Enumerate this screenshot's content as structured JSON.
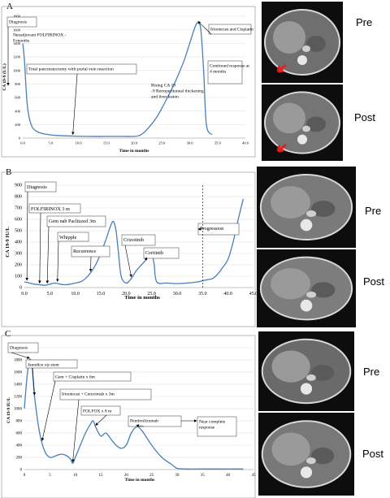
{
  "panels": [
    {
      "letter": "A",
      "ct_labels": [
        "Pre",
        "Post"
      ],
      "chart_data": {
        "type": "line",
        "xlabel": "Time in months",
        "ylabel": "CA 19-9 (U/L)",
        "xlim": [
          0,
          40
        ],
        "ylim": [
          0,
          1800
        ],
        "xticks": [
          "0.0",
          "5.0",
          "10.0",
          "15.0",
          "20.0",
          "25.0",
          "30.0",
          "35.0",
          "40.0"
        ],
        "yticks": [
          "0",
          "200",
          "400",
          "600",
          "800",
          "1000",
          "1200",
          "1400",
          "1600",
          "1800"
        ],
        "series": [
          {
            "x": [
              0.0,
              0.3,
              0.8,
              1.5,
              2.5,
              4.0,
              6.0,
              9.0,
              12.0,
              15.0,
              18.0,
              20.0,
              21.0,
              22.0,
              24.0,
              26.0,
              27.5,
              29.0,
              30.0,
              31.0,
              31.5,
              32.0,
              32.5,
              33.0,
              34.0
            ],
            "y": [
              1400,
              1150,
              500,
              200,
              100,
              60,
              40,
              30,
              25,
              25,
              25,
              25,
              40,
              100,
              300,
              600,
              850,
              1150,
              1400,
              1650,
              1700,
              1600,
              1000,
              200,
              50
            ]
          }
        ],
        "annotations": [
          {
            "text": "Diagnosis",
            "arrow_to": [
              0.3,
              1400
            ]
          },
          {
            "text": "Neoadjuvant FOLFIRINOX - 8 months"
          },
          {
            "text": "Total pancreatectomy with portal vein resection",
            "arrow_to": [
              9,
              30
            ]
          },
          {
            "text": "Irinotecan and Cisplatin",
            "arrow_to": [
              31.5,
              1700
            ]
          },
          {
            "text": "Rising CA 19 -9 Retroperitoneal thickening and liver lesion"
          },
          {
            "text": "Continued response at 4 months"
          }
        ]
      }
    },
    {
      "letter": "B",
      "ct_labels": [
        "Pre",
        "Post"
      ],
      "chart_data": {
        "type": "line",
        "xlabel": "Time in months",
        "ylabel": "CA 19-9 IU/L",
        "xlim": [
          0,
          45
        ],
        "ylim": [
          0,
          900
        ],
        "xticks": [
          "0.0",
          "5.0",
          "10.0",
          "15.0",
          "20.0",
          "25.0",
          "30.0",
          "35.0",
          "40.0",
          "45.0"
        ],
        "yticks": [
          "0",
          "100",
          "200",
          "300",
          "400",
          "500",
          "600",
          "700",
          "800",
          "900"
        ],
        "series": [
          {
            "x": [
              0.0,
              1.0,
              2.0,
              3.0,
              4.0,
              5.0,
              6.0,
              7.0,
              8.0,
              9.0,
              10.0,
              11.0,
              12.0,
              13.0,
              14.0,
              15.0,
              16.0,
              17.0,
              17.5,
              18.0,
              18.5,
              19.0,
              20.0,
              21.0,
              22.0,
              23.0,
              24.0,
              24.5,
              25.0,
              25.5,
              26.0,
              28.0,
              30.0,
              32.0,
              34.0,
              35.0,
              36.0,
              37.0,
              38.0,
              39.0,
              40.0,
              41.0,
              42.0,
              43.0
            ],
            "y": [
              50,
              40,
              30,
              25,
              20,
              30,
              40,
              30,
              25,
              30,
              40,
              50,
              80,
              130,
              200,
              300,
              420,
              550,
              580,
              500,
              300,
              100,
              40,
              80,
              150,
              200,
              250,
              290,
              310,
              200,
              50,
              40,
              35,
              40,
              50,
              60,
              70,
              80,
              120,
              180,
              250,
              400,
              600,
              780
            ]
          }
        ],
        "annotations": [
          {
            "text": "Diagnosis",
            "arrow_to": [
              0.5,
              50
            ]
          },
          {
            "text": "FOLFIRINOX 3 m",
            "arrow_to": [
              3,
              25
            ]
          },
          {
            "text": "Gem nab Paclitaxel 3m",
            "arrow_to": [
              4.5,
              25
            ]
          },
          {
            "text": "Whipple",
            "arrow_to": [
              6.5,
              40
            ]
          },
          {
            "text": "Recurrence",
            "arrow_to": [
              13,
              130
            ]
          },
          {
            "text": "Crizotinib",
            "arrow_to": [
              21,
              80
            ]
          },
          {
            "text": "Ceritinib",
            "arrow_to": [
              24,
              250
            ]
          },
          {
            "text": "Progression",
            "vline_x": 35
          }
        ]
      }
    },
    {
      "letter": "C",
      "ct_labels": [
        "Pre",
        "Post"
      ],
      "chart_data": {
        "type": "line",
        "xlabel": "Time in months",
        "ylabel": "CA 19-9 IU/L",
        "xlim": [
          0,
          45
        ],
        "ylim": [
          0,
          2000
        ],
        "xticks": [
          "0",
          "5",
          "10",
          "15",
          "20",
          "25",
          "30",
          "35",
          "40",
          "45"
        ],
        "yticks": [
          "0",
          "200",
          "400",
          "600",
          "800",
          "1000",
          "1200",
          "1400",
          "1600",
          "1800",
          "2000"
        ],
        "series": [
          {
            "x": [
              0.0,
              0.5,
              1.0,
              1.5,
              2.0,
              3.0,
              4.0,
              5.0,
              6.0,
              7.0,
              8.0,
              9.0,
              9.5,
              10.0,
              11.0,
              12.0,
              13.0,
              13.5,
              14.0,
              15.0,
              16.0,
              17.0,
              18.0,
              19.0,
              20.0,
              21.0,
              22.0,
              23.0,
              25.0,
              27.0,
              29.0,
              30.0,
              32.0,
              35.0,
              40.0,
              43.0
            ],
            "y": [
              1000,
              1500,
              1800,
              1700,
              1200,
              600,
              300,
              200,
              220,
              250,
              240,
              180,
              100,
              200,
              400,
              600,
              750,
              800,
              700,
              550,
              600,
              500,
              400,
              350,
              400,
              600,
              700,
              650,
              400,
              200,
              80,
              20,
              10,
              10,
              10,
              10
            ]
          }
        ],
        "annotations": [
          {
            "text": "Diagnosis",
            "arrow_to": [
              1.0,
              1800
            ]
          },
          {
            "text": "Jaundice s/p stent",
            "arrow_to": [
              2.0,
              1200
            ]
          },
          {
            "text": "Gem + Cisplatin x 6m",
            "arrow_to": [
              3.5,
              450
            ]
          },
          {
            "text": "Irinotecan + Cetuximab x 3m",
            "arrow_to": [
              9.5,
              100
            ]
          },
          {
            "text": "FOLFOX x 8 m",
            "arrow_to": [
              14,
              700
            ]
          },
          {
            "text": "Pembrolizumab",
            "arrow_to": [
              22,
              700
            ]
          },
          {
            "text": "Near complete response"
          }
        ]
      }
    }
  ]
}
